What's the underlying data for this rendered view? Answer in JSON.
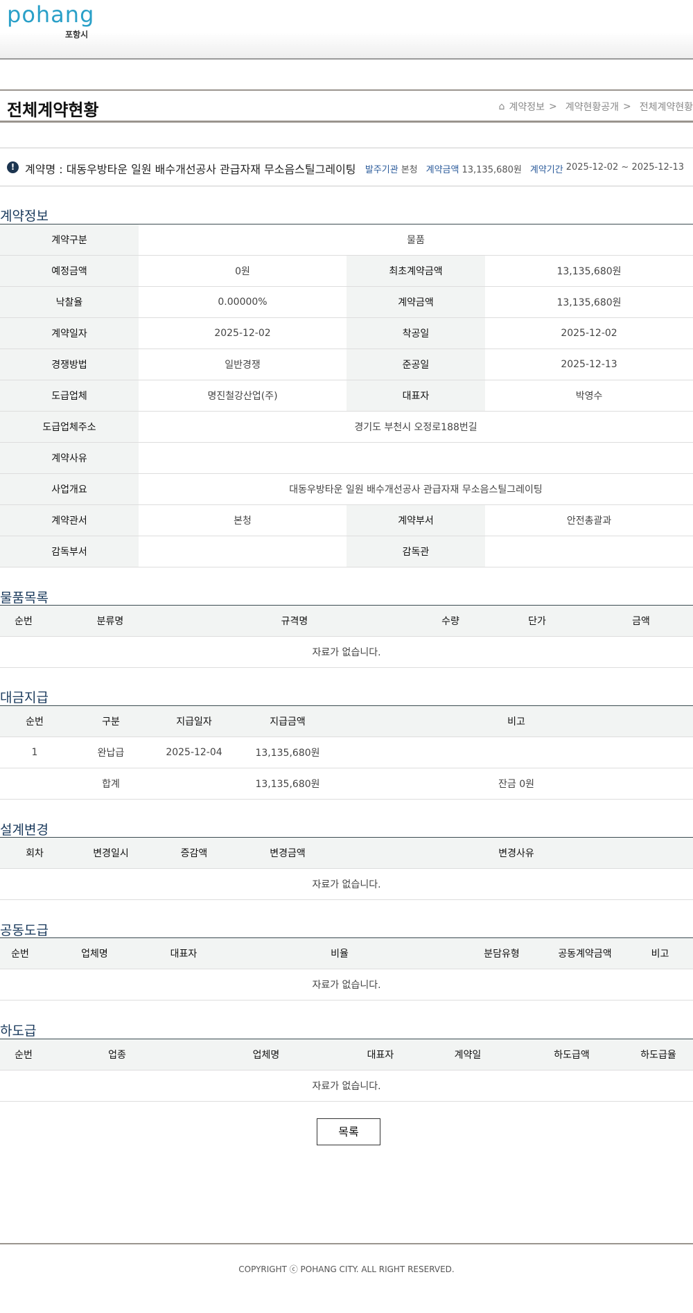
{
  "header": {
    "logo_word": "pohang",
    "logo_kr": "포항시"
  },
  "page": {
    "title": "전체계약현황",
    "breadcrumb": [
      "계약정보",
      "계약현황공개",
      "전체계약현황"
    ]
  },
  "summary": {
    "contract_name": "계약명 : 대동우방타운 일원 배수개선공사 관급자재 무소음스틸그레이팅",
    "agency_label": "발주기관",
    "agency": "본청",
    "amount_label": "계약금액",
    "amount": "13,135,680원",
    "period_label": "계약기간",
    "period": "2025-12-02 ~ 2025-12-13"
  },
  "contract_info": {
    "title": "계약정보",
    "rows": [
      {
        "k1": "계약구분",
        "v1": "물품"
      },
      {
        "k1": "예정금액",
        "v1": "0원",
        "k2": "최초계약금액",
        "v2": "13,135,680원"
      },
      {
        "k1": "낙찰율",
        "v1": "0.00000%",
        "k2": "계약금액",
        "v2": "13,135,680원"
      },
      {
        "k1": "계약일자",
        "v1": "2025-12-02",
        "k2": "착공일",
        "v2": "2025-12-02"
      },
      {
        "k1": "경쟁방법",
        "v1": "일반경쟁",
        "k2": "준공일",
        "v2": "2025-12-13"
      },
      {
        "k1": "도급업체",
        "v1": "명진철강산업(주)",
        "k2": "대표자",
        "v2": "박영수"
      },
      {
        "k1": "도급업체주소",
        "v1": "경기도 부천시 오정로188번길"
      },
      {
        "k1": "계약사유",
        "v1": ""
      },
      {
        "k1": "사업개요",
        "v1": "대동우방타운 일원 배수개선공사 관급자재 무소음스틸그레이팅"
      },
      {
        "k1": "계약관서",
        "v1": "본청",
        "k2": "계약부서",
        "v2": "안전총괄과"
      },
      {
        "k1": "감독부서",
        "v1": "",
        "k2": "감독관",
        "v2": ""
      }
    ]
  },
  "goods": {
    "title": "물품목록",
    "headers": [
      "순번",
      "분류명",
      "규격명",
      "수량",
      "단가",
      "금액"
    ],
    "empty": "자료가 없습니다."
  },
  "payment": {
    "title": "대금지급",
    "headers": [
      "순번",
      "구분",
      "지급일자",
      "지급금액",
      "비고"
    ],
    "rows": [
      [
        "1",
        "완납급",
        "2025-12-04",
        "13,135,680원",
        ""
      ]
    ],
    "total": {
      "label": "합계",
      "amount": "13,135,680원",
      "remark": "잔금 0원"
    }
  },
  "design_change": {
    "title": "설계변경",
    "headers": [
      "회차",
      "변경일시",
      "증감액",
      "변경금액",
      "변경사유"
    ],
    "empty": "자료가 없습니다."
  },
  "joint": {
    "title": "공동도급",
    "headers": [
      "순번",
      "업체명",
      "대표자",
      "비율",
      "분담유형",
      "공동계약금액",
      "비고"
    ],
    "empty": "자료가 없습니다."
  },
  "subcontract": {
    "title": "하도급",
    "headers": [
      "순번",
      "업종",
      "업체명",
      "대표자",
      "계약일",
      "하도급액",
      "하도급율"
    ],
    "empty": "자료가 없습니다."
  },
  "actions": {
    "list_label": "목록"
  },
  "footer": {
    "copyright": "COPYRIGHT ⓒ POHANG CITY. ALL RIGHT RESERVED."
  }
}
